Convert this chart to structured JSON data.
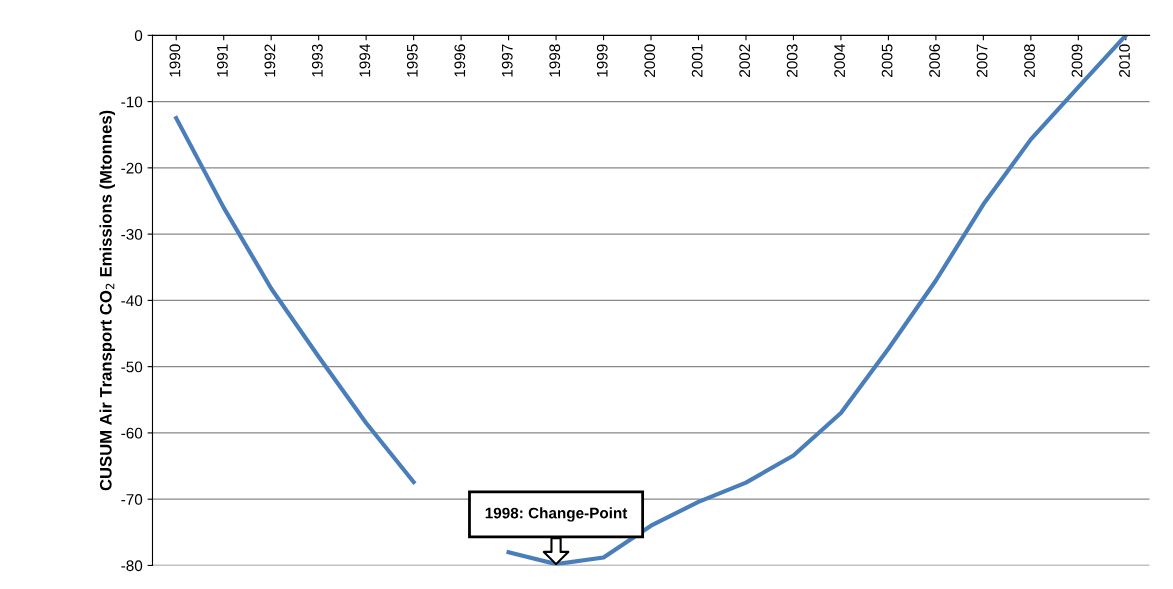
{
  "chart_data": {
    "type": "line",
    "ylabel": "CUSUM Air Transport CO$_{2}$ Emissions (Mtonnes)",
    "categories": [
      "1990",
      "1991",
      "1992",
      "1993",
      "1994",
      "1995",
      "1996",
      "1997",
      "1998",
      "1999",
      "2000",
      "2001",
      "2002",
      "2003",
      "2004",
      "2005",
      "2006",
      "2007",
      "2008",
      "2009",
      "2010"
    ],
    "series": [
      {
        "color": "#4a7ebb",
        "values": [
          -12.5,
          -26,
          -38.2,
          -48.5,
          -58.5,
          -67.4,
          null,
          -78,
          -79.8,
          -78.8,
          -74,
          -70.4,
          -67.5,
          -63.4,
          -57,
          -47.3,
          -37,
          -25.5,
          -15.7,
          -7.8,
          0
        ]
      }
    ],
    "ylim": [
      -80,
      0
    ],
    "yticks": [
      -80,
      -70,
      -60,
      -50,
      -40,
      -30,
      -20,
      -10,
      0
    ],
    "grid": "y",
    "marker": "none",
    "line_style": "solid",
    "annotations": [
      {
        "text": "1998: Change-Point",
        "x": "1998",
        "y": -79.8
      }
    ]
  }
}
